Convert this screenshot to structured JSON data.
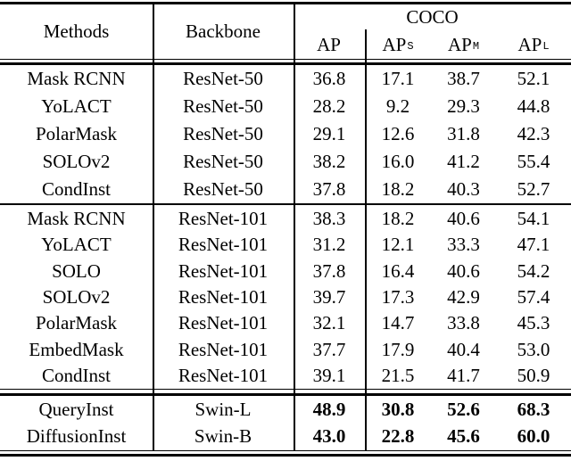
{
  "page": {
    "background": "#ffffff",
    "text_color": "#000000"
  },
  "table": {
    "header": {
      "methods": "Methods",
      "backbone": "Backbone",
      "coco": "COCO",
      "cols": [
        {
          "t": "AP",
          "s": ""
        },
        {
          "t": "AP",
          "s": "S"
        },
        {
          "t": "AP",
          "s": "M"
        },
        {
          "t": "AP",
          "s": "L"
        }
      ]
    },
    "groups": [
      {
        "name": "resnet-50",
        "bold_values": false,
        "rows": [
          [
            "Mask RCNN",
            "ResNet-50",
            "36.8",
            "17.1",
            "38.7",
            "52.1"
          ],
          [
            "YoLACT",
            "ResNet-50",
            "28.2",
            "9.2",
            "29.3",
            "44.8"
          ],
          [
            "PolarMask",
            "ResNet-50",
            "29.1",
            "12.6",
            "31.8",
            "42.3"
          ],
          [
            "SOLOv2",
            "ResNet-50",
            "38.2",
            "16.0",
            "41.2",
            "55.4"
          ],
          [
            "CondInst",
            "ResNet-50",
            "37.8",
            "18.2",
            "40.3",
            "52.7"
          ]
        ]
      },
      {
        "name": "resnet-101",
        "bold_values": false,
        "rows": [
          [
            "Mask RCNN",
            "ResNet-101",
            "38.3",
            "18.2",
            "40.6",
            "54.1"
          ],
          [
            "YoLACT",
            "ResNet-101",
            "31.2",
            "12.1",
            "33.3",
            "47.1"
          ],
          [
            "SOLO",
            "ResNet-101",
            "37.8",
            "16.4",
            "40.6",
            "54.2"
          ],
          [
            "SOLOv2",
            "ResNet-101",
            "39.7",
            "17.3",
            "42.9",
            "57.4"
          ],
          [
            "PolarMask",
            "ResNet-101",
            "32.1",
            "14.7",
            "33.8",
            "45.3"
          ],
          [
            "EmbedMask",
            "ResNet-101",
            "37.7",
            "17.9",
            "40.4",
            "53.0"
          ],
          [
            "CondInst",
            "ResNet-101",
            "39.1",
            "21.5",
            "41.7",
            "50.9"
          ]
        ]
      },
      {
        "name": "swin",
        "bold_values": true,
        "rows": [
          [
            "QueryInst",
            "Swin-L",
            "48.9",
            "30.8",
            "52.6",
            "68.3"
          ],
          [
            "DiffusionInst",
            "Swin-B",
            "43.0",
            "22.8",
            "45.6",
            "60.0"
          ]
        ]
      }
    ]
  }
}
